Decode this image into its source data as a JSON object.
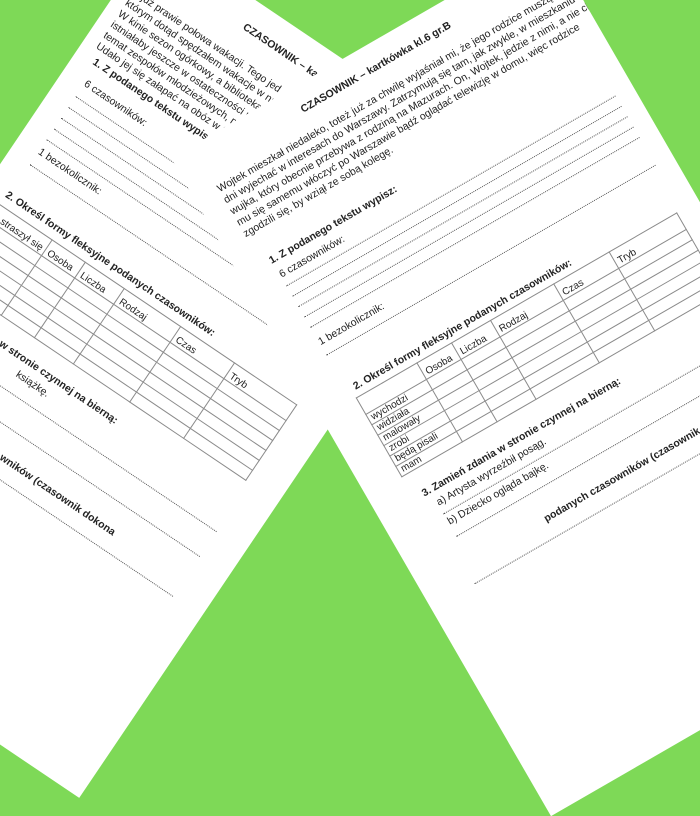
{
  "background_color": "#7ed957",
  "left_sheet": {
    "title": "CZASOWNIK – ka",
    "paragraph": [
      "…już prawie połowa wakacji. Tego jed",
      "którym dotąd spędzałem wakacje w nasz",
      "W kinie sezon ogórkowy, a biblioteka zam",
      "istniałaby jeszcze w ostateczności możli",
      "temat zespołów młodzieżowych, mody",
      "Udało jej się załapać na obóz w Sudet"
    ],
    "task1": "1.  Z podanego tekstu wypisz:",
    "verbs_label": "6 czasowników:",
    "infinitive_label": "1 bezokolicznik:",
    "task2": "2.  Określ formy fleksyjne podanych czasowników:",
    "table_headers": [
      "straszył się",
      "Osoba",
      "Liczba",
      "Rodzaj",
      "Czas",
      "Tryb"
    ],
    "task3_fragment": "w stronie czynnej na bierną:",
    "task3a_fragment": "książkę.",
    "task4_fragment": "wników (czasownik dokona"
  },
  "right_sheet": {
    "title": "CZASOWNIK – kartkówka  kl.6   gr.B",
    "paragraph": [
      "Wojtek mieszkał niedaleko, toteż już za chwilę wyjaśniał mi, że jego rodzice muszą na",
      "dni wyjechać w interesach do Warszawy. Zatrzymują się tam, jak zwykle, w mieszkaniu",
      "wujka, który obecnie przebywa z rodziną na Mazurach. On, Wojtek, jedzie z nimi, a nie chce",
      "mu się samemu włóczyć po Warszawie bądź oglądać telewizję w domu, więc rodzice",
      "zgodzili się, by wziął ze sobą kolegę."
    ],
    "task1": "1.  Z podanego tekstu wypisz:",
    "verbs_label": "6 czasowników:",
    "infinitive_label": "1 bezokolicznik:",
    "task2": "2.  Określ formy fleksyjne podanych czasowników:",
    "table_headers": [
      "",
      "Osoba",
      "Liczba",
      "Rodzaj",
      "Czas",
      "Tryb"
    ],
    "table_rows": [
      "wychodzi",
      "widziała",
      "malowały",
      "zrobi",
      "będą pisali",
      "mam"
    ],
    "task3": "3.  Zamień zdania w stronie czynnej na bierną:",
    "task3a": "a)  Artysta wyrzeźbił posąg.",
    "task3b": "b)  Dziecko ogląda bajkę.",
    "task4_fragment": "podanych czasowników (czasownik dokonany"
  }
}
